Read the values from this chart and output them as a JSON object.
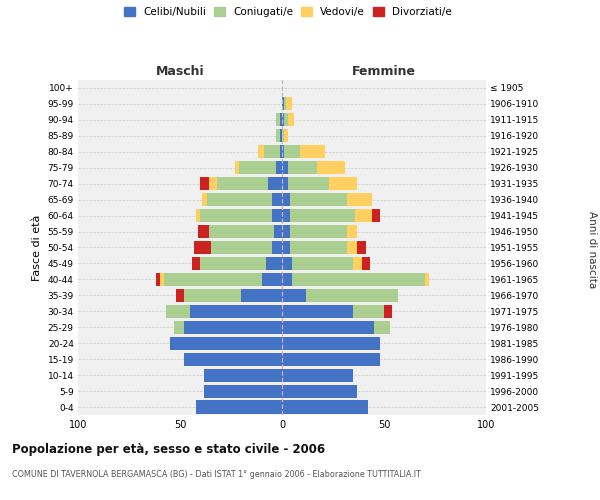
{
  "age_groups": [
    "0-4",
    "5-9",
    "10-14",
    "15-19",
    "20-24",
    "25-29",
    "30-34",
    "35-39",
    "40-44",
    "45-49",
    "50-54",
    "55-59",
    "60-64",
    "65-69",
    "70-74",
    "75-79",
    "80-84",
    "85-89",
    "90-94",
    "95-99",
    "100+"
  ],
  "birth_years": [
    "2001-2005",
    "1996-2000",
    "1991-1995",
    "1986-1990",
    "1981-1985",
    "1976-1980",
    "1971-1975",
    "1966-1970",
    "1961-1965",
    "1956-1960",
    "1951-1955",
    "1946-1950",
    "1941-1945",
    "1936-1940",
    "1931-1935",
    "1926-1930",
    "1921-1925",
    "1916-1920",
    "1911-1915",
    "1906-1910",
    "≤ 1905"
  ],
  "male": {
    "celibi": [
      42,
      38,
      38,
      48,
      55,
      48,
      45,
      20,
      10,
      8,
      5,
      4,
      5,
      5,
      7,
      3,
      1,
      1,
      1,
      0,
      0
    ],
    "coniugati": [
      0,
      0,
      0,
      0,
      0,
      5,
      12,
      28,
      48,
      32,
      30,
      32,
      35,
      32,
      25,
      18,
      8,
      2,
      2,
      0,
      0
    ],
    "vedovi": [
      0,
      0,
      0,
      0,
      0,
      0,
      0,
      0,
      2,
      0,
      0,
      0,
      2,
      2,
      4,
      2,
      3,
      0,
      0,
      0,
      0
    ],
    "divorziati": [
      0,
      0,
      0,
      0,
      0,
      0,
      0,
      4,
      2,
      4,
      8,
      5,
      0,
      0,
      4,
      0,
      0,
      0,
      0,
      0,
      0
    ]
  },
  "female": {
    "nubili": [
      42,
      37,
      35,
      48,
      48,
      45,
      35,
      12,
      5,
      5,
      4,
      4,
      4,
      4,
      3,
      3,
      1,
      0,
      1,
      1,
      0
    ],
    "coniugate": [
      0,
      0,
      0,
      0,
      0,
      8,
      15,
      45,
      65,
      30,
      28,
      28,
      32,
      28,
      20,
      14,
      8,
      1,
      2,
      1,
      0
    ],
    "vedove": [
      0,
      0,
      0,
      0,
      0,
      0,
      0,
      0,
      2,
      4,
      5,
      5,
      8,
      12,
      14,
      14,
      12,
      2,
      3,
      3,
      0
    ],
    "divorziate": [
      0,
      0,
      0,
      0,
      0,
      0,
      4,
      0,
      0,
      4,
      4,
      0,
      4,
      0,
      0,
      0,
      0,
      0,
      0,
      0,
      0
    ]
  },
  "colors": {
    "celibi": "#4472C4",
    "coniugati": "#AACF91",
    "vedovi": "#FFD060",
    "divorziati": "#CC2222"
  },
  "xlim": 100,
  "title": "Popolazione per età, sesso e stato civile - 2006",
  "subtitle": "COMUNE DI TAVERNOLA BERGAMASCA (BG) - Dati ISTAT 1° gennaio 2006 - Elaborazione TUTTITALIA.IT",
  "xlabel_left": "Maschi",
  "xlabel_right": "Femmine",
  "ylabel_left": "Fasce di età",
  "ylabel_right": "Anni di nascita",
  "bg_color": "#FFFFFF",
  "plot_bg_color": "#F0F0F0"
}
